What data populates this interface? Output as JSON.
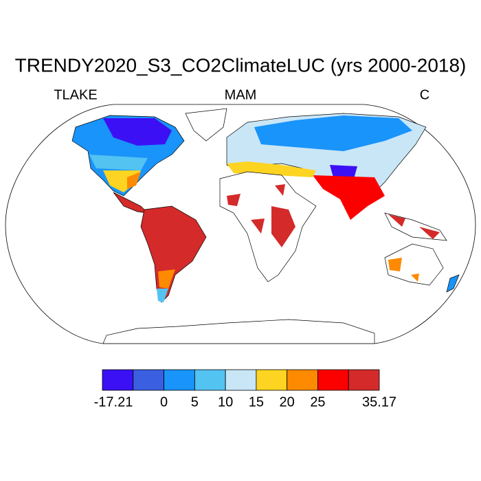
{
  "title": "TRENDY2020_S3_CO2ClimateLUC (yrs 2000-2018)",
  "subtitle_left": "TLAKE",
  "subtitle_center": "MAM",
  "subtitle_right": "C",
  "colorbar": {
    "colors": [
      "#3b10f5",
      "#3a5fe0",
      "#1994fa",
      "#53c3f2",
      "#c9e6f7",
      "#fdd421",
      "#fd8a00",
      "#fc0000",
      "#d42a2a"
    ],
    "ticks": [
      {
        "value": -17.21,
        "label": "-17.21"
      },
      0,
      5,
      10,
      15,
      20,
      25,
      {
        "value": 35.17,
        "label": "35.17"
      }
    ]
  }
}
